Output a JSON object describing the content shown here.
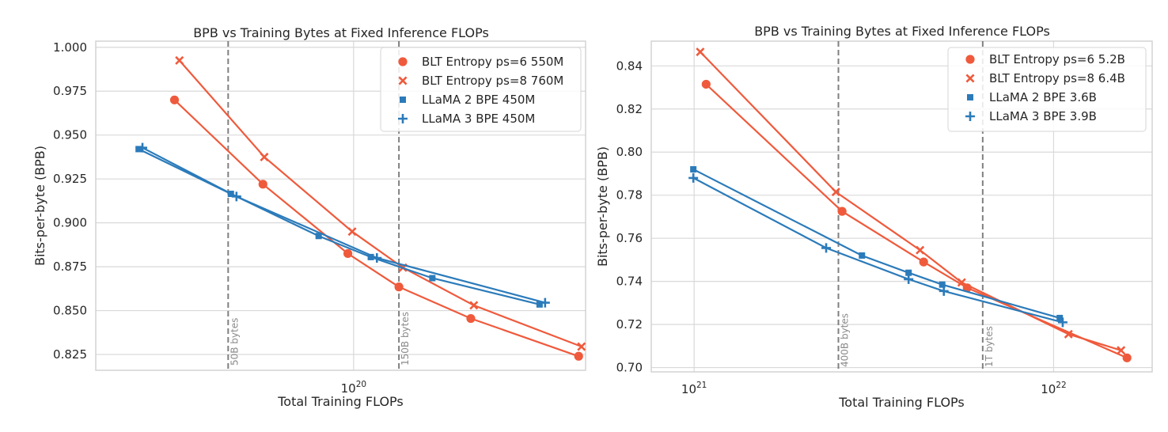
{
  "chart_data": [
    {
      "type": "line",
      "title": "BPB vs Training Bytes at Fixed Inference FLOPs",
      "xlabel": "Total Training FLOPs",
      "ylabel": "Bits-per-byte (BPB)",
      "x_scale": "log",
      "xlim": [
        1.6e+19,
        5.2e+20
      ],
      "ylim": [
        0.816,
        1.0035
      ],
      "yticks": [
        0.825,
        0.85,
        0.875,
        0.9,
        0.925,
        0.95,
        0.975,
        1.0
      ],
      "ytick_labels": [
        "0.825",
        "0.850",
        "0.875",
        "0.900",
        "0.925",
        "0.950",
        "0.975",
        "1.000"
      ],
      "xticks": [
        1e+20
      ],
      "xtick_labels": [
        {
          "base": "10",
          "exp": "20"
        }
      ],
      "grid": true,
      "legend_position": "top-right",
      "vlines": [
        {
          "x": 4.1e+19,
          "label": "50B bytes"
        },
        {
          "x": 1.38e+20,
          "label": "150B bytes"
        }
      ],
      "series": [
        {
          "name": "BLT Entropy ps=6 550M",
          "color": "#ef5a3c",
          "marker": "circle",
          "x": [
            2.8e+19,
            5.25e+19,
            9.6e+19,
            1.38e+20,
            2.3e+20,
            4.95e+20
          ],
          "y": [
            0.97,
            0.922,
            0.8825,
            0.8635,
            0.8455,
            0.824
          ]
        },
        {
          "name": "BLT Entropy ps=8 760M",
          "color": "#ef5a3c",
          "marker": "x",
          "x": [
            2.9e+19,
            5.3e+19,
            9.9e+19,
            1.42e+20,
            2.35e+20,
            5.05e+20
          ],
          "y": [
            0.9925,
            0.9375,
            0.895,
            0.8745,
            0.853,
            0.8295
          ]
        },
        {
          "name": "LLaMA 2 BPE 450M",
          "color": "#2b7bba",
          "marker": "square",
          "x": [
            2.17e+19,
            4.18e+19,
            7.8e+19,
            1.13e+20,
            1.75e+20,
            3.75e+20
          ],
          "y": [
            0.942,
            0.9165,
            0.8925,
            0.8805,
            0.8685,
            0.8535
          ]
        },
        {
          "name": "LLaMA 3 BPE 450M",
          "color": "#2b7bba",
          "marker": "plus",
          "x": [
            2.23e+19,
            4.35e+19,
            1.18e+20,
            3.9e+20
          ],
          "y": [
            0.9428,
            0.915,
            0.88,
            0.8545
          ]
        }
      ]
    },
    {
      "type": "line",
      "title": "BPB vs Training Bytes at Fixed Inference FLOPs",
      "xlabel": "Total Training FLOPs",
      "ylabel": "Bits-per-byte (BPB)",
      "x_scale": "log",
      "xlim": [
        7.6e+20,
        1.88e+22
      ],
      "ylim": [
        0.698,
        0.8515
      ],
      "yticks": [
        0.7,
        0.72,
        0.74,
        0.76,
        0.78,
        0.8,
        0.82,
        0.84
      ],
      "ytick_labels": [
        "0.70",
        "0.72",
        "0.74",
        "0.76",
        "0.78",
        "0.80",
        "0.82",
        "0.84"
      ],
      "xticks": [
        1e+21,
        1e+22
      ],
      "xtick_labels": [
        {
          "base": "10",
          "exp": "21"
        },
        {
          "base": "10",
          "exp": "22"
        }
      ],
      "grid": true,
      "legend_position": "top-right",
      "vlines": [
        {
          "x": 2.52e+21,
          "label": "400B bytes"
        },
        {
          "x": 6.35e+21,
          "label": "1T bytes"
        }
      ],
      "series": [
        {
          "name": "BLT Entropy ps=6 5.2B",
          "color": "#ef5a3c",
          "marker": "circle",
          "x": [
            1.08e+21,
            2.58e+21,
            4.35e+21,
            5.75e+21,
            1.6e+22
          ],
          "y": [
            0.8315,
            0.7725,
            0.749,
            0.737,
            0.7045
          ]
        },
        {
          "name": "BLT Entropy ps=8 6.4B",
          "color": "#ef5a3c",
          "marker": "x",
          "x": [
            1.04e+21,
            2.48e+21,
            4.25e+21,
            5.55e+21,
            1.1e+22,
            1.54e+22
          ],
          "y": [
            0.8465,
            0.7815,
            0.7545,
            0.7395,
            0.7155,
            0.708
          ]
        },
        {
          "name": "LLaMA 2 BPE 3.6B",
          "color": "#2b7bba",
          "marker": "square",
          "x": [
            9.95e+20,
            2.93e+21,
            3.95e+21,
            4.9e+21,
            1.04e+22
          ],
          "y": [
            0.792,
            0.752,
            0.744,
            0.7385,
            0.723
          ]
        },
        {
          "name": "LLaMA 3 BPE 3.9B",
          "color": "#2b7bba",
          "marker": "plus",
          "x": [
            9.95e+20,
            2.33e+21,
            3.95e+21,
            4.95e+21,
            1.06e+22
          ],
          "y": [
            0.788,
            0.7555,
            0.741,
            0.7355,
            0.721
          ]
        }
      ]
    }
  ]
}
